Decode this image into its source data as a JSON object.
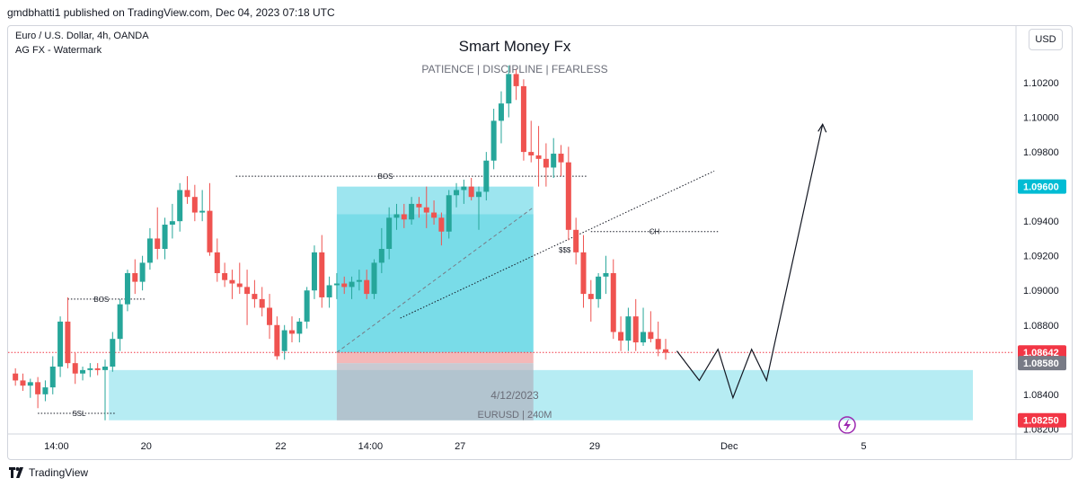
{
  "header": {
    "publisher_line": "gmdbhatti1 published on TradingView.com, Dec 04, 2023 07:18 UTC"
  },
  "symbol": {
    "title": "Euro / U.S. Dollar, 4h, OANDA",
    "watermark_line": "AG FX - Watermark"
  },
  "banner": {
    "title": "Smart Money Fx",
    "subtitle": "PATIENCE  |  DISCIPLINE  |  FEARLESS"
  },
  "currency_button": "USD",
  "footer": {
    "brand": "TradingView"
  },
  "annotations": {
    "bos_left": "BOS",
    "bos_top": "BOS",
    "ch": "CH",
    "ssl": "SSL",
    "sss": "$$$",
    "date_label": "4/12/2023",
    "symbol_label": "EURUSD | 240M"
  },
  "colors": {
    "bull": "#26a69a",
    "bear": "#ef5350",
    "zone": "#b2ebf2",
    "position_profit": "#4dd0e1",
    "position_loss": "#ef9a9a",
    "last_price": "#f23645",
    "price_tag_teal": "#00bcd4"
  },
  "price_labels": [
    {
      "text": "1.09600",
      "price": 1.096,
      "color": "#00bcd4"
    },
    {
      "text": "1.08642",
      "price": 1.08642,
      "color": "#f23645"
    },
    {
      "text": "1.08580",
      "price": 1.0858,
      "color": "#787b86"
    },
    {
      "text": "1.08250",
      "price": 1.0825,
      "color": "#f23645"
    }
  ],
  "chart_data": {
    "type": "candlestick",
    "title": "Euro / U.S. Dollar, 4h, OANDA",
    "y_axis": {
      "range": [
        1.0815,
        1.1033
      ],
      "ticks": [
        "1.08200",
        "1.08400",
        "1.08600",
        "1.08800",
        "1.09000",
        "1.09200",
        "1.09400",
        "1.09600",
        "1.09800",
        "1.10000",
        "1.10200"
      ]
    },
    "x_axis": {
      "ticks": [
        {
          "label": "14:00",
          "index": 6
        },
        {
          "label": "20",
          "index": 18
        },
        {
          "label": "22",
          "index": 36
        },
        {
          "label": "14:00",
          "index": 48
        },
        {
          "label": "27",
          "index": 60
        },
        {
          "label": "29",
          "index": 78
        },
        {
          "label": "Dec",
          "index": 96
        },
        {
          "label": "5",
          "index": 114
        }
      ]
    },
    "candles": [
      [
        1.0852,
        1.0855,
        1.0845,
        1.0848
      ],
      [
        1.0848,
        1.0852,
        1.0842,
        1.0845
      ],
      [
        1.0845,
        1.0849,
        1.0838,
        1.0847
      ],
      [
        1.0847,
        1.085,
        1.0832,
        1.084
      ],
      [
        1.084,
        1.0848,
        1.0836,
        1.0844
      ],
      [
        1.0844,
        1.0862,
        1.084,
        1.0856
      ],
      [
        1.0856,
        1.0885,
        1.085,
        1.0882
      ],
      [
        1.0882,
        1.0896,
        1.0855,
        1.0858
      ],
      [
        1.0858,
        1.0864,
        1.0846,
        1.0852
      ],
      [
        1.0852,
        1.0856,
        1.0848,
        1.0854
      ],
      [
        1.0854,
        1.0858,
        1.085,
        1.0855
      ],
      [
        1.0855,
        1.0858,
        1.0851,
        1.0854
      ],
      [
        1.0854,
        1.086,
        1.0825,
        1.0856
      ],
      [
        1.0856,
        1.0876,
        1.0853,
        1.0872
      ],
      [
        1.0872,
        1.0895,
        1.0865,
        1.0892
      ],
      [
        1.0892,
        1.0912,
        1.0888,
        1.091
      ],
      [
        1.091,
        1.0918,
        1.0898,
        1.0905
      ],
      [
        1.0905,
        1.092,
        1.09,
        1.0916
      ],
      [
        1.0916,
        1.0936,
        1.0912,
        1.093
      ],
      [
        1.093,
        1.0948,
        1.0918,
        1.0924
      ],
      [
        1.0924,
        1.0942,
        1.0918,
        1.0938
      ],
      [
        1.0938,
        1.095,
        1.093,
        1.094
      ],
      [
        1.094,
        1.0962,
        1.0934,
        1.0958
      ],
      [
        1.0958,
        1.0966,
        1.095,
        1.0954
      ],
      [
        1.0954,
        1.0961,
        1.094,
        1.0945
      ],
      [
        1.0945,
        1.0958,
        1.094,
        1.0946
      ],
      [
        1.0946,
        1.0962,
        1.092,
        1.0922
      ],
      [
        1.0922,
        1.093,
        1.0905,
        1.091
      ],
      [
        1.091,
        1.0916,
        1.0902,
        1.0906
      ],
      [
        1.0906,
        1.0912,
        1.0895,
        1.0904
      ],
      [
        1.0904,
        1.0916,
        1.0898,
        1.0902
      ],
      [
        1.0902,
        1.0912,
        1.088,
        1.0898
      ],
      [
        1.0898,
        1.0906,
        1.089,
        1.0895
      ],
      [
        1.0895,
        1.0902,
        1.0885,
        1.089
      ],
      [
        1.089,
        1.0898,
        1.0872,
        1.088
      ],
      [
        1.088,
        1.0885,
        1.086,
        1.0862
      ],
      [
        1.0865,
        1.088,
        1.086,
        1.0877
      ],
      [
        1.0877,
        1.0885,
        1.087,
        1.0875
      ],
      [
        1.0875,
        1.0884,
        1.087,
        1.0882
      ],
      [
        1.0882,
        1.0902,
        1.0878,
        1.09
      ],
      [
        1.09,
        1.0926,
        1.0895,
        1.0922
      ],
      [
        1.0922,
        1.0932,
        1.089,
        1.0896
      ],
      [
        1.0896,
        1.0908,
        1.089,
        1.0903
      ],
      [
        1.0903,
        1.091,
        1.0895,
        1.0904
      ],
      [
        1.0904,
        1.0908,
        1.0898,
        1.0902
      ],
      [
        1.0902,
        1.0908,
        1.0895,
        1.0905
      ],
      [
        1.0905,
        1.0912,
        1.09,
        1.0906
      ],
      [
        1.0906,
        1.0912,
        1.0895,
        1.0898
      ],
      [
        1.0898,
        1.0918,
        1.0895,
        1.0916
      ],
      [
        1.0916,
        1.0936,
        1.091,
        1.0924
      ],
      [
        1.0924,
        1.0948,
        1.0918,
        1.0942
      ],
      [
        1.0942,
        1.095,
        1.0935,
        1.0944
      ],
      [
        1.0944,
        1.095,
        1.0936,
        1.0941
      ],
      [
        1.0941,
        1.0954,
        1.0938,
        1.095
      ],
      [
        1.095,
        1.0954,
        1.0942,
        1.0948
      ],
      [
        1.0948,
        1.096,
        1.0936,
        1.0945
      ],
      [
        1.0945,
        1.0952,
        1.0938,
        1.0942
      ],
      [
        1.0942,
        1.0945,
        1.0926,
        1.0934
      ],
      [
        1.0934,
        1.0958,
        1.093,
        1.0955
      ],
      [
        1.0955,
        1.0962,
        1.0948,
        1.0958
      ],
      [
        1.0958,
        1.0964,
        1.095,
        1.096
      ],
      [
        1.096,
        1.0965,
        1.0952,
        1.0954
      ],
      [
        1.0954,
        1.096,
        1.0935,
        1.0957
      ],
      [
        1.0957,
        1.098,
        1.0952,
        1.0975
      ],
      [
        1.0975,
        1.1005,
        1.097,
        1.0998
      ],
      [
        1.0998,
        1.1015,
        1.0985,
        1.1008
      ],
      [
        1.1008,
        1.103,
        1.1,
        1.1025
      ],
      [
        1.1025,
        1.1028,
        1.101,
        1.1018
      ],
      [
        1.1018,
        1.1022,
        1.0975,
        1.098
      ],
      [
        1.098,
        1.0998,
        1.0974,
        1.0978
      ],
      [
        1.0978,
        1.0995,
        1.096,
        1.0976
      ],
      [
        1.0976,
        1.0985,
        1.096,
        1.0971
      ],
      [
        1.0971,
        1.0988,
        1.0965,
        1.0979
      ],
      [
        1.0979,
        1.0984,
        1.0966,
        1.0974
      ],
      [
        1.0974,
        1.0983,
        1.0929,
        1.0935
      ],
      [
        1.0935,
        1.0942,
        1.0915,
        1.0922
      ],
      [
        1.0922,
        1.0932,
        1.089,
        1.0898
      ],
      [
        1.0898,
        1.0906,
        1.0882,
        1.0895
      ],
      [
        1.0895,
        1.091,
        1.089,
        1.0908
      ],
      [
        1.0908,
        1.092,
        1.0898,
        1.091
      ],
      [
        1.091,
        1.0918,
        1.0872,
        1.0876
      ],
      [
        1.0876,
        1.0885,
        1.0865,
        1.0871
      ],
      [
        1.0871,
        1.089,
        1.0865,
        1.0885
      ],
      [
        1.0885,
        1.0895,
        1.0865,
        1.087
      ],
      [
        1.087,
        1.089,
        1.0868,
        1.0876
      ],
      [
        1.0876,
        1.0888,
        1.087,
        1.0872
      ],
      [
        1.0872,
        1.0882,
        1.0862,
        1.0866
      ],
      [
        1.0866,
        1.0872,
        1.086,
        1.0864
      ]
    ],
    "start_index": 0,
    "indicator_annotations": {
      "resistance_zone_top": 1.096,
      "entry": 1.08642,
      "stop": 1.0858,
      "target": 1.096,
      "demand_zone": [
        1.0825,
        1.0854
      ]
    }
  }
}
